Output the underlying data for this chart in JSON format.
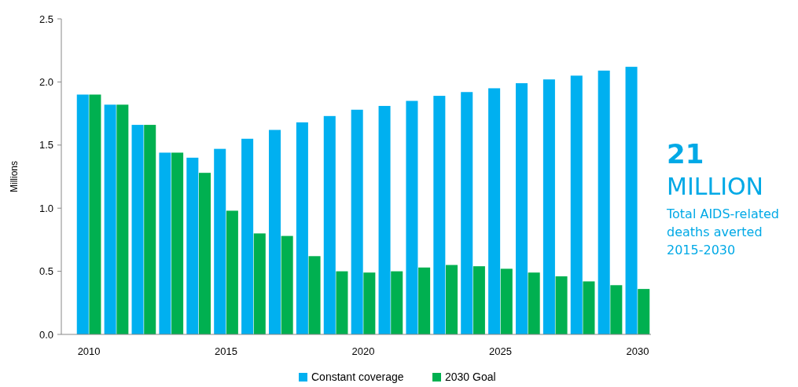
{
  "chart_data": {
    "type": "bar",
    "ylabel": "Millions",
    "categories": [
      "2010",
      null,
      null,
      null,
      null,
      "2015",
      null,
      null,
      null,
      null,
      "2020",
      null,
      null,
      null,
      null,
      "2025",
      null,
      null,
      null,
      null,
      "2030"
    ],
    "series": [
      {
        "name": "Constant coverage",
        "color": "#00b0f0",
        "values": [
          1.9,
          1.82,
          1.66,
          1.44,
          1.4,
          1.47,
          1.55,
          1.62,
          1.68,
          1.73,
          1.78,
          1.81,
          1.85,
          1.89,
          1.92,
          1.95,
          1.99,
          2.02,
          2.05,
          2.09,
          2.12
        ]
      },
      {
        "name": "2030 Goal",
        "color": "#00b050",
        "values": [
          1.9,
          1.82,
          1.66,
          1.44,
          1.28,
          0.98,
          0.8,
          0.78,
          0.62,
          0.5,
          0.49,
          0.5,
          0.53,
          0.55,
          0.54,
          0.52,
          0.49,
          0.46,
          0.42,
          0.39,
          0.36
        ]
      }
    ],
    "ylim": [
      0,
      2.5
    ],
    "yticks": [
      {
        "value": 0,
        "label": "0.0"
      },
      {
        "value": 0.5,
        "label": "0.5"
      },
      {
        "value": 1,
        "label": "1.0"
      },
      {
        "value": 1.5,
        "label": "1.5"
      },
      {
        "value": 2,
        "label": "2.0"
      },
      {
        "value": 2.5,
        "label": "2.5"
      }
    ],
    "legend": "bottom",
    "annotations": [
      "21",
      "MILLION",
      "Total AIDS-related deaths averted 2015-2030"
    ]
  }
}
